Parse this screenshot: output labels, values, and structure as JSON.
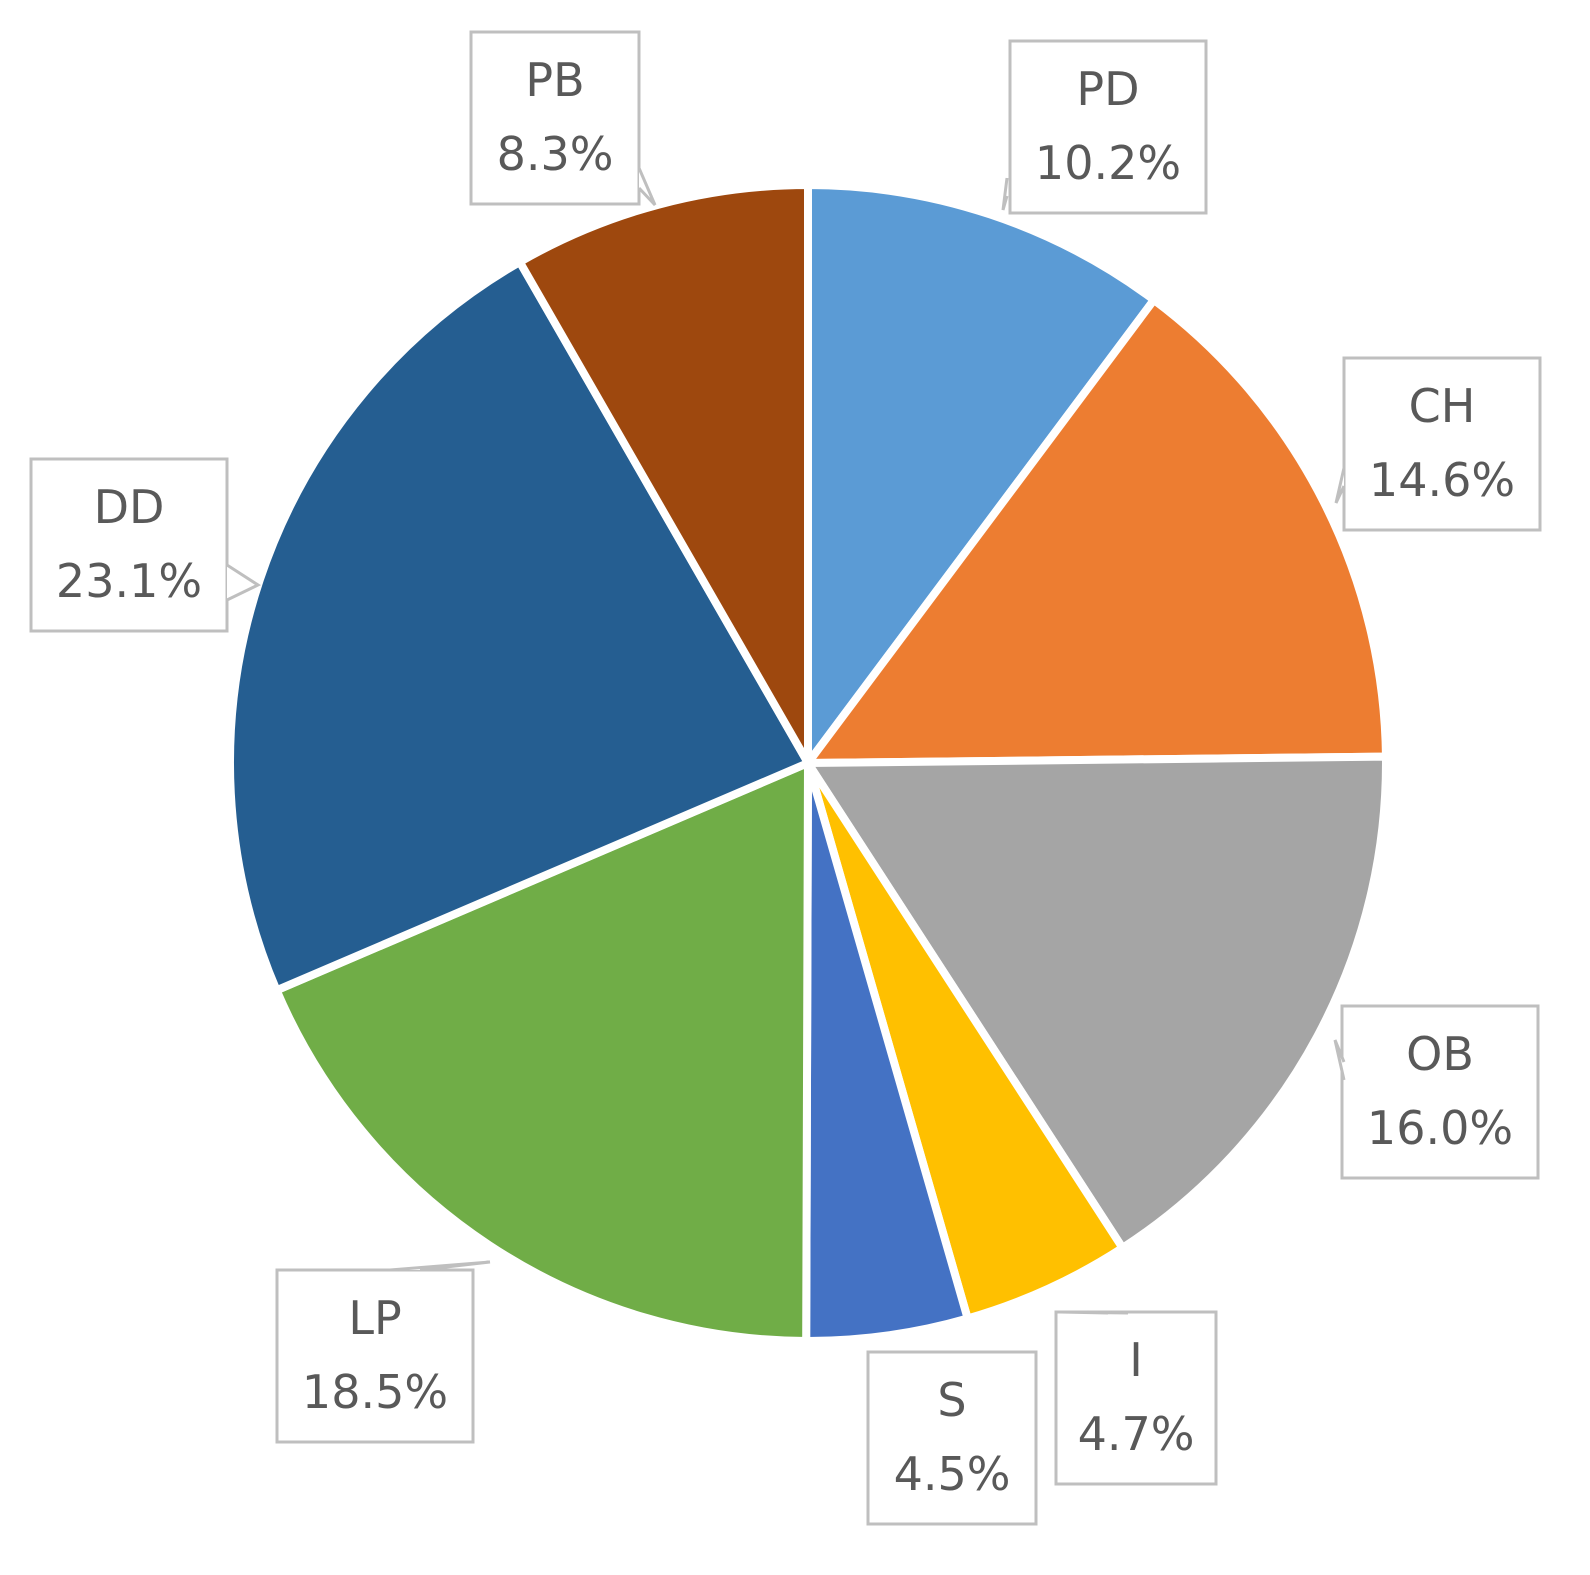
{
  "chart_data": {
    "type": "pie",
    "start_angle_deg": 0,
    "direction": "clockwise",
    "data_labels": "category and percent",
    "slices": [
      {
        "label": "PD",
        "value": 10.2,
        "display": "10.2%",
        "color": "#5B9BD5"
      },
      {
        "label": "CH",
        "value": 14.6,
        "display": "14.6%",
        "color": "#ED7D31"
      },
      {
        "label": "OB",
        "value": 16.0,
        "display": "16.0%",
        "color": "#A5A5A5"
      },
      {
        "label": "I",
        "value": 4.7,
        "display": "4.7%",
        "color": "#FFC000"
      },
      {
        "label": "S",
        "value": 4.5,
        "display": "4.5%",
        "color": "#4472C4"
      },
      {
        "label": "LP",
        "value": 18.5,
        "display": "18.5%",
        "color": "#70AD47"
      },
      {
        "label": "DD",
        "value": 23.1,
        "display": "23.1%",
        "color": "#255E91"
      },
      {
        "label": "PB",
        "value": 8.3,
        "display": "8.3%",
        "color": "#9E480E"
      }
    ]
  }
}
